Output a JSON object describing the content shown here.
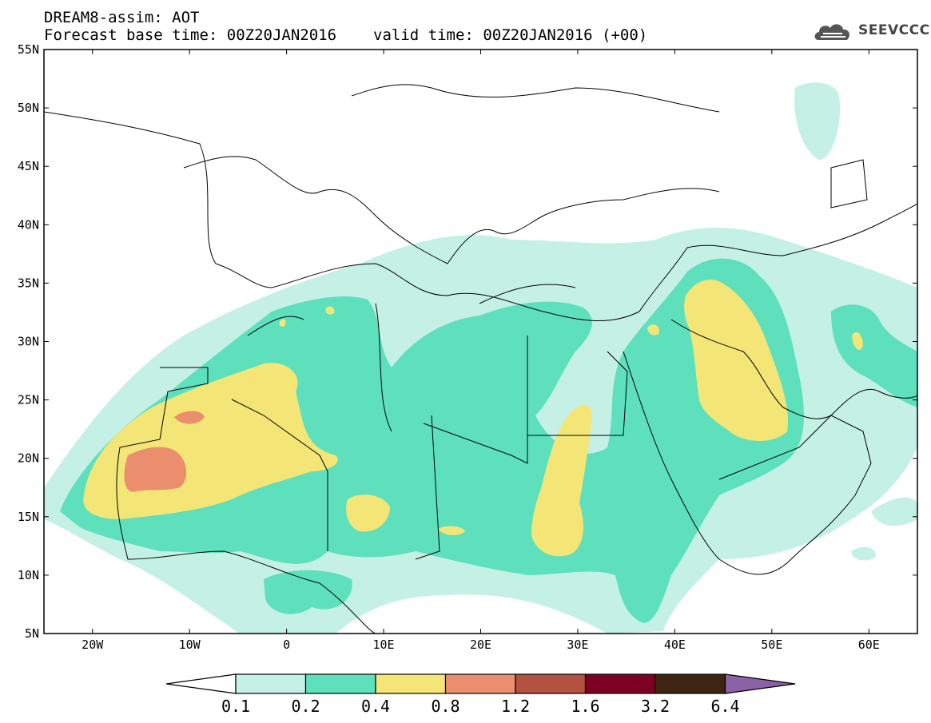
{
  "title": {
    "line1": "DREAM8-assim: AOT",
    "base_time": "Forecast base time: 00Z20JAN2016",
    "valid_time": "valid time: 00Z20JAN2016 (+00)"
  },
  "logo": {
    "text": "SEEVCCC",
    "icon": "cloud-logo-icon"
  },
  "map": {
    "lat_range": [
      5,
      55
    ],
    "lon_range": [
      -25,
      65
    ],
    "lat_ticks": [
      "5N",
      "10N",
      "15N",
      "20N",
      "25N",
      "30N",
      "35N",
      "40N",
      "45N",
      "50N",
      "55N"
    ],
    "lon_ticks": [
      "20W",
      "10W",
      "0",
      "10E",
      "20E",
      "30E",
      "40E",
      "50E",
      "60E"
    ]
  },
  "colorbar": {
    "labels": [
      "0.1",
      "0.2",
      "0.4",
      "0.8",
      "1.2",
      "1.6",
      "3.2",
      "6.4"
    ],
    "colors": [
      "#ffffff",
      "#c5f0e6",
      "#5ee0bd",
      "#f3e676",
      "#eb8e6e",
      "#b35240",
      "#7e0023",
      "#3e2512",
      "#8c62a6"
    ]
  }
}
